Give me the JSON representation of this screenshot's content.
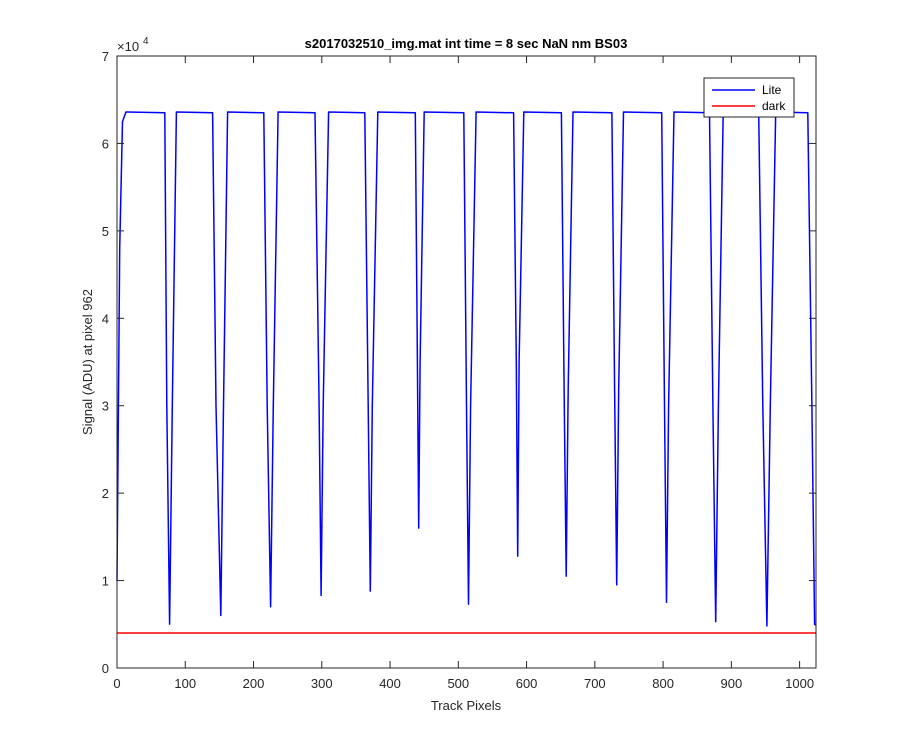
{
  "chart_data": {
    "type": "line",
    "title": "s2017032510_img.mat int time = 8 sec  NaN nm BS03",
    "xlabel": "Track Pixels",
    "ylabel": "Signal (ADU) at pixel 962",
    "xlim": [
      0,
      1024
    ],
    "ylim": [
      0,
      70000
    ],
    "x_ticks": [
      0,
      100,
      200,
      300,
      400,
      500,
      600,
      700,
      800,
      900,
      1000
    ],
    "y_ticks": [
      0,
      1,
      2,
      3,
      4,
      5,
      6,
      7
    ],
    "y_tick_values": [
      0,
      10000,
      20000,
      30000,
      40000,
      50000,
      60000,
      70000
    ],
    "y_exponent_label": "×10",
    "y_exponent_power": "4",
    "grid": false,
    "legend_location": "top-right",
    "series": [
      {
        "name": "Lite",
        "color": "#0000ff",
        "plateau": 63600,
        "x": [
          0,
          4,
          8,
          13,
          70,
          73,
          77,
          81,
          87,
          140,
          145,
          152,
          156,
          162,
          215,
          220,
          225,
          229,
          236,
          290,
          296,
          299,
          302,
          310,
          363,
          368,
          371,
          374,
          382,
          437,
          440,
          442,
          444,
          450,
          508,
          512,
          515,
          518,
          526,
          581,
          585,
          587,
          589,
          596,
          651,
          655,
          658,
          661,
          668,
          725,
          729,
          732,
          735,
          742,
          798,
          802,
          805,
          808,
          816,
          868,
          873,
          877,
          881,
          888,
          940,
          946,
          952,
          957,
          965,
          1012,
          1018,
          1022,
          1024
        ],
        "y": [
          10000,
          48000,
          62500,
          63600,
          63500,
          30000,
          5000,
          30000,
          63600,
          63500,
          30000,
          6000,
          30000,
          63600,
          63500,
          30000,
          7000,
          30000,
          63600,
          63500,
          30000,
          8300,
          30000,
          63600,
          63500,
          30000,
          8800,
          30000,
          63600,
          63500,
          35000,
          16000,
          35000,
          63600,
          63500,
          30000,
          7300,
          30000,
          63600,
          63500,
          35000,
          12800,
          35000,
          63600,
          63500,
          32000,
          10500,
          32000,
          63600,
          63500,
          32000,
          9500,
          32000,
          63600,
          63500,
          30000,
          7500,
          30000,
          63600,
          63500,
          30000,
          5300,
          30000,
          63600,
          63500,
          30000,
          4800,
          30000,
          63600,
          63500,
          30000,
          5000,
          4900
        ]
      },
      {
        "name": "dark",
        "color": "#ff0000",
        "x": [
          0,
          1024
        ],
        "y": [
          4000,
          4000
        ]
      }
    ]
  }
}
